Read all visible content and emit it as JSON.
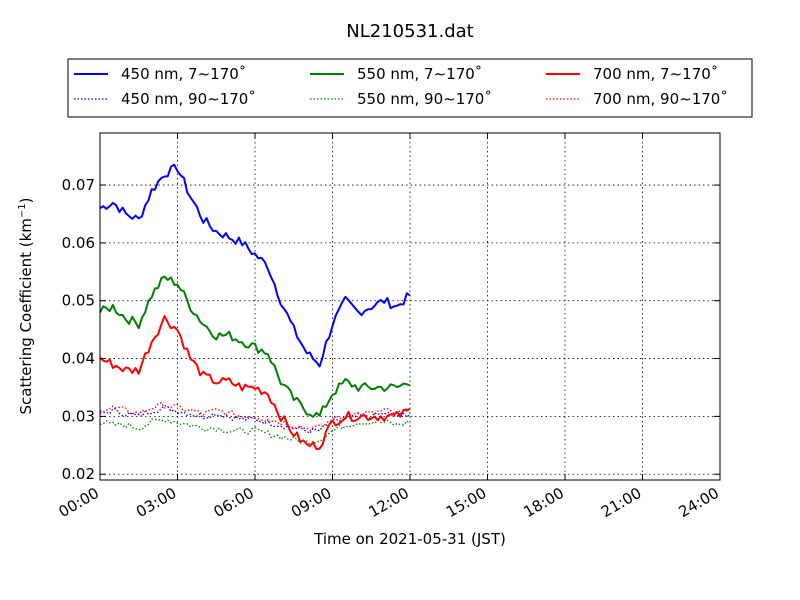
{
  "chart_data": {
    "type": "line",
    "title": "NL210531.dat",
    "xlabel": "Time on 2021-05-31 (JST)",
    "ylabel": "Scattering Coefficient (km",
    "ylabel_sup": "−1",
    "ylabel_close": ")",
    "x_unit": "hours",
    "xlim": [
      0,
      24
    ],
    "ylim": [
      0.019,
      0.079
    ],
    "x_ticks": [
      0,
      3,
      6,
      9,
      12,
      15,
      18,
      21,
      24
    ],
    "x_tick_labels": [
      "00:00",
      "03:00",
      "06:00",
      "09:00",
      "12:00",
      "15:00",
      "18:00",
      "21:00",
      "24:00"
    ],
    "y_ticks": [
      0.02,
      0.03,
      0.04,
      0.05,
      0.06,
      0.07
    ],
    "y_tick_labels": [
      "0.02",
      "0.03",
      "0.04",
      "0.05",
      "0.06",
      "0.07"
    ],
    "grid": true,
    "legend_position": "top-center, above plot",
    "x": [
      0.0,
      0.5,
      1.0,
      1.5,
      2.0,
      2.5,
      3.0,
      3.5,
      4.0,
      4.5,
      5.0,
      5.5,
      6.0,
      6.5,
      7.0,
      7.5,
      8.0,
      8.5,
      9.0,
      9.5,
      10.0,
      10.5,
      11.0,
      11.5,
      12.0
    ],
    "series": [
      {
        "name": "450 nm, 7∼170˚",
        "color": "#0000ff",
        "style": "solid",
        "values": [
          0.066,
          0.067,
          0.065,
          0.064,
          0.069,
          0.072,
          0.073,
          0.068,
          0.064,
          0.062,
          0.061,
          0.06,
          0.058,
          0.056,
          0.05,
          0.045,
          0.041,
          0.039,
          0.046,
          0.05,
          0.048,
          0.049,
          0.05,
          0.049,
          0.051
        ]
      },
      {
        "name": "450 nm, 90∼170˚",
        "color": "#0000ff",
        "style": "dotted",
        "values": [
          0.0305,
          0.031,
          0.0305,
          0.03,
          0.031,
          0.0315,
          0.031,
          0.0305,
          0.03,
          0.0305,
          0.03,
          0.0295,
          0.0295,
          0.029,
          0.0285,
          0.028,
          0.0275,
          0.0275,
          0.029,
          0.0295,
          0.03,
          0.03,
          0.0305,
          0.03,
          0.0305
        ]
      },
      {
        "name": "550 nm, 7∼170˚",
        "color": "#008000",
        "style": "solid",
        "values": [
          0.048,
          0.049,
          0.047,
          0.046,
          0.051,
          0.054,
          0.053,
          0.049,
          0.046,
          0.044,
          0.044,
          0.043,
          0.042,
          0.041,
          0.036,
          0.033,
          0.031,
          0.03,
          0.034,
          0.036,
          0.035,
          0.035,
          0.035,
          0.035,
          0.036
        ]
      },
      {
        "name": "550 nm, 90∼170˚",
        "color": "#008000",
        "style": "dotted",
        "values": [
          0.029,
          0.0285,
          0.0285,
          0.028,
          0.029,
          0.0295,
          0.029,
          0.0285,
          0.028,
          0.028,
          0.0275,
          0.0275,
          0.0275,
          0.027,
          0.0265,
          0.026,
          0.0255,
          0.026,
          0.0275,
          0.0285,
          0.029,
          0.029,
          0.029,
          0.0285,
          0.029
        ]
      },
      {
        "name": "700 nm, 7∼170˚",
        "color": "#ff0000",
        "style": "solid",
        "values": [
          0.04,
          0.039,
          0.038,
          0.038,
          0.043,
          0.047,
          0.045,
          0.04,
          0.037,
          0.036,
          0.036,
          0.035,
          0.035,
          0.034,
          0.03,
          0.027,
          0.025,
          0.025,
          0.029,
          0.03,
          0.03,
          0.03,
          0.03,
          0.03,
          0.031
        ]
      },
      {
        "name": "700 nm, 90∼170˚",
        "color": "#ff0000",
        "style": "dotted",
        "values": [
          0.031,
          0.0315,
          0.031,
          0.0305,
          0.0315,
          0.032,
          0.0315,
          0.031,
          0.0305,
          0.031,
          0.0305,
          0.03,
          0.03,
          0.0295,
          0.029,
          0.0285,
          0.028,
          0.028,
          0.0295,
          0.03,
          0.0305,
          0.0305,
          0.031,
          0.0305,
          0.031
        ]
      }
    ]
  }
}
